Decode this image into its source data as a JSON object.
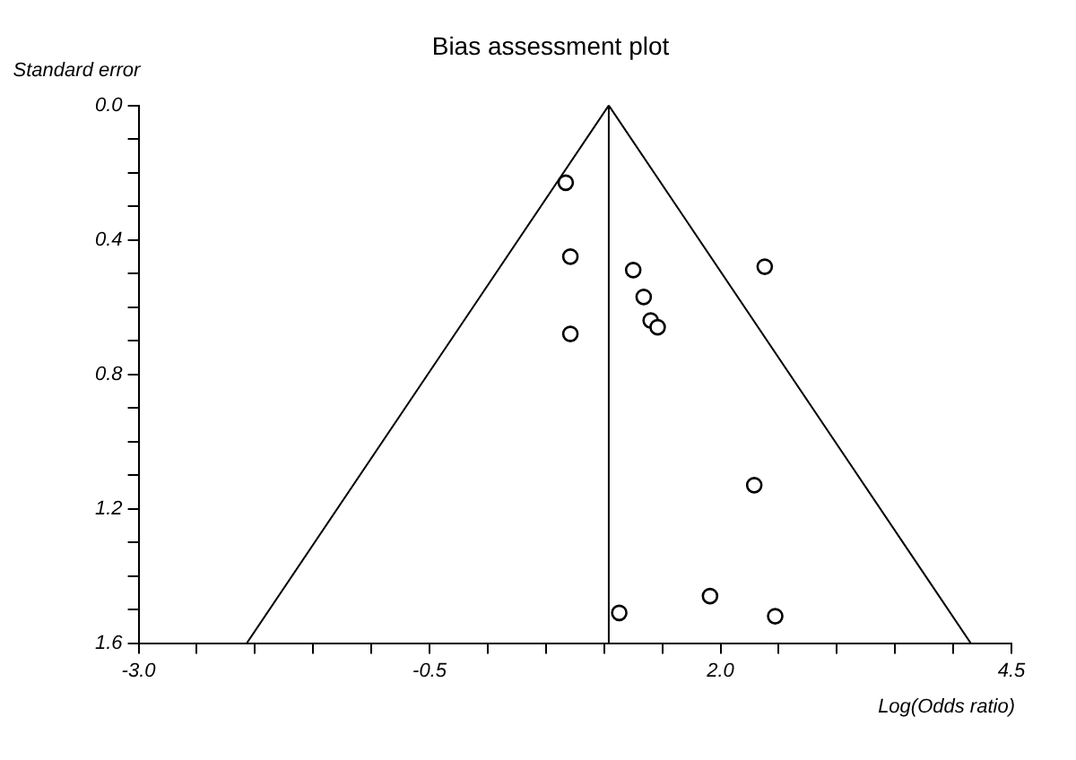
{
  "chart_data": {
    "type": "scatter",
    "title": "Bias assessment plot",
    "xlabel": "Log(Odds ratio)",
    "ylabel": "Standard error",
    "xlim": [
      -3.0,
      4.5
    ],
    "ylim": [
      1.6,
      0.0
    ],
    "xticks": [
      {
        "value": -3,
        "label": "-3.0"
      },
      {
        "value": -2.5,
        "label": null
      },
      {
        "value": -2,
        "label": null
      },
      {
        "value": -1.5,
        "label": null
      },
      {
        "value": -1,
        "label": null
      },
      -0.5,
      {
        "value": 0,
        "label": null
      },
      {
        "value": 0.5,
        "label": null
      },
      {
        "value": 1,
        "label": null
      },
      {
        "value": 1.5,
        "label": null
      },
      {
        "value": 2,
        "label": "2.0"
      },
      {
        "value": 2.5,
        "label": null
      },
      {
        "value": 3,
        "label": null
      },
      {
        "value": 3.5,
        "label": null
      },
      {
        "value": 4,
        "label": null
      },
      4.5
    ],
    "yticks": [
      {
        "value": 0,
        "label": "0.0"
      },
      {
        "value": 0.1,
        "label": null
      },
      {
        "value": 0.2,
        "label": null
      },
      {
        "value": 0.3,
        "label": null
      },
      0.4,
      {
        "value": 0.5,
        "label": null
      },
      {
        "value": 0.6,
        "label": null
      },
      {
        "value": 0.7,
        "label": null
      },
      0.8,
      {
        "value": 0.9,
        "label": null
      },
      {
        "value": 1.0,
        "label": null
      },
      {
        "value": 1.1,
        "label": null
      },
      1.2,
      {
        "value": 1.3,
        "label": null
      },
      {
        "value": 1.4,
        "label": null
      },
      {
        "value": 1.5,
        "label": null
      },
      1.6
    ],
    "grid": false,
    "legend": false,
    "marker": "circle",
    "ref_lines": [
      {
        "axis": "x",
        "value": 1.04,
        "color": "#000000"
      }
    ],
    "series": [
      {
        "type": "scatter",
        "color": "#000000",
        "x": [
          0.67,
          0.71,
          0.71,
          1.25,
          2.38,
          1.34,
          1.4,
          1.46,
          2.29,
          1.91,
          1.13,
          2.47
        ],
        "values": [
          0.23,
          0.45,
          0.68,
          0.49,
          0.48,
          0.57,
          0.64,
          0.66,
          1.13,
          1.46,
          1.51,
          1.52
        ]
      },
      {
        "type": "line",
        "color": "#000000",
        "x": [
          -2.07,
          1.04,
          4.15
        ],
        "values": [
          1.6,
          0,
          1.6
        ],
        "marker": "none"
      }
    ]
  }
}
